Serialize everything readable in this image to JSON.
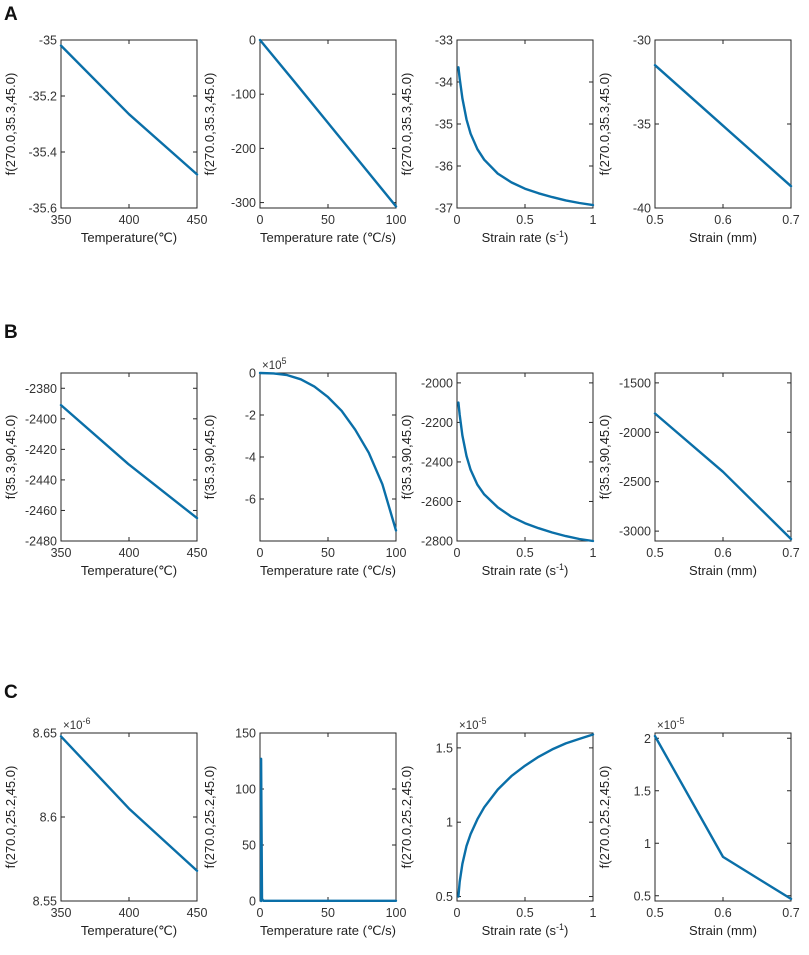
{
  "colors": {
    "line": "#0A6FA8"
  },
  "panel_labels": [
    "A",
    "B",
    "C"
  ],
  "chart_data": [
    {
      "panel": "A",
      "type": "line",
      "ylabel": "f(270.0,35.3,45.0)",
      "xlabel": "Temperature(℃)",
      "xlim": [
        350,
        450
      ],
      "ylim": [
        -35.6,
        -35.0
      ],
      "xticks": [
        350,
        400,
        450
      ],
      "yticks": [
        -35.6,
        -35.4,
        -35.2,
        -35
      ],
      "ytick_labels": [
        "-35.6",
        "-35.4",
        "-35.2",
        "-35"
      ],
      "xtick_labels": [
        "350",
        "400",
        "450"
      ],
      "y_exponent": null,
      "x": [
        350,
        400,
        450
      ],
      "y": [
        -35.02,
        -35.265,
        -35.48
      ]
    },
    {
      "panel": "A",
      "type": "line",
      "ylabel": "f(270.0,35.3,45.0)",
      "xlabel": "Temperature rate (℃/s)",
      "xlim": [
        0,
        100
      ],
      "ylim": [
        -310,
        0
      ],
      "xticks": [
        0,
        50,
        100
      ],
      "yticks": [
        -300,
        -200,
        -100,
        0
      ],
      "ytick_labels": [
        "-300",
        "-200",
        "-100",
        "0"
      ],
      "xtick_labels": [
        "0",
        "50",
        "100"
      ],
      "y_exponent": null,
      "x": [
        0,
        25,
        50,
        75,
        100
      ],
      "y": [
        0,
        -76,
        -153,
        -230,
        -307
      ]
    },
    {
      "panel": "A",
      "type": "line",
      "ylabel": "f(270.0,35.3,45.0)",
      "xlabel": "Strain rate (s",
      "xlabel_sup": "-1",
      "xlabel_suffix": ")",
      "xlim": [
        0,
        1
      ],
      "ylim": [
        -37,
        -33
      ],
      "xticks": [
        0,
        0.5,
        1
      ],
      "yticks": [
        -37,
        -36,
        -35,
        -34,
        -33
      ],
      "ytick_labels": [
        "-37",
        "-36",
        "-35",
        "-34",
        "-33"
      ],
      "xtick_labels": [
        "0",
        "0.5",
        "1"
      ],
      "y_exponent": null,
      "x": [
        0.01,
        0.02,
        0.04,
        0.07,
        0.1,
        0.15,
        0.2,
        0.3,
        0.4,
        0.5,
        0.6,
        0.7,
        0.8,
        0.9,
        1.0
      ],
      "y": [
        -33.65,
        -33.92,
        -34.39,
        -34.89,
        -35.23,
        -35.6,
        -35.85,
        -36.18,
        -36.39,
        -36.54,
        -36.65,
        -36.74,
        -36.82,
        -36.88,
        -36.93
      ]
    },
    {
      "panel": "A",
      "type": "line",
      "ylabel": "f(270.0,35.3,45.0)",
      "xlabel": "Strain (mm)",
      "xlim": [
        0.5,
        0.7
      ],
      "ylim": [
        -40,
        -30
      ],
      "xticks": [
        0.5,
        0.6,
        0.7
      ],
      "yticks": [
        -40,
        -35,
        -30
      ],
      "ytick_labels": [
        "-40",
        "-35",
        "-30"
      ],
      "xtick_labels": [
        "0.5",
        "0.6",
        "0.7"
      ],
      "y_exponent": null,
      "x": [
        0.5,
        0.6,
        0.7
      ],
      "y": [
        -31.5,
        -35.1,
        -38.7
      ]
    },
    {
      "panel": "B",
      "type": "line",
      "ylabel": "f(35.3,90,45.0)",
      "xlabel": "Temperature(℃)",
      "xlim": [
        350,
        450
      ],
      "ylim": [
        -2480,
        -2370
      ],
      "xticks": [
        350,
        400,
        450
      ],
      "yticks": [
        -2480,
        -2460,
        -2440,
        -2420,
        -2400,
        -2380
      ],
      "ytick_labels": [
        "-2480",
        "-2460",
        "-2440",
        "-2420",
        "-2400",
        "-2380"
      ],
      "xtick_labels": [
        "350",
        "400",
        "450"
      ],
      "y_exponent": null,
      "x": [
        350,
        400,
        450
      ],
      "y": [
        -2391,
        -2430,
        -2465
      ]
    },
    {
      "panel": "B",
      "type": "line",
      "ylabel": "f(35.3,90,45.0)",
      "xlabel": "Temperature rate (℃/s)",
      "xlim": [
        0,
        100
      ],
      "ylim": [
        -8,
        0
      ],
      "xticks": [
        0,
        50,
        100
      ],
      "yticks": [
        -6,
        -4,
        -2,
        0
      ],
      "ytick_labels": [
        "-6",
        "-4",
        "-2",
        "0"
      ],
      "xtick_labels": [
        "0",
        "50",
        "100"
      ],
      "y_exponent": "5",
      "x": [
        0,
        10,
        20,
        30,
        40,
        50,
        60,
        70,
        80,
        90,
        100
      ],
      "y": [
        0,
        -0.02,
        -0.1,
        -0.3,
        -0.65,
        -1.15,
        -1.8,
        -2.7,
        -3.8,
        -5.3,
        -7.5
      ]
    },
    {
      "panel": "B",
      "type": "line",
      "ylabel": "f(35.3,90,45.0)",
      "xlabel": "Strain rate (s",
      "xlabel_sup": "-1",
      "xlabel_suffix": ")",
      "xlim": [
        0,
        1
      ],
      "ylim": [
        -2800,
        -1950
      ],
      "xticks": [
        0,
        0.5,
        1
      ],
      "yticks": [
        -2800,
        -2600,
        -2400,
        -2200,
        -2000
      ],
      "ytick_labels": [
        "-2800",
        "-2600",
        "-2400",
        "-2200",
        "-2000"
      ],
      "xtick_labels": [
        "0",
        "0.5",
        "1"
      ],
      "y_exponent": null,
      "x": [
        0.01,
        0.02,
        0.04,
        0.07,
        0.1,
        0.15,
        0.2,
        0.3,
        0.4,
        0.5,
        0.6,
        0.7,
        0.8,
        0.9,
        1.0
      ],
      "y": [
        -2100,
        -2162,
        -2266,
        -2370,
        -2440,
        -2515,
        -2564,
        -2630,
        -2677,
        -2710,
        -2735,
        -2757,
        -2775,
        -2790,
        -2800
      ]
    },
    {
      "panel": "B",
      "type": "line",
      "ylabel": "f(35.3,90,45.0)",
      "xlabel": "Strain (mm)",
      "xlim": [
        0.5,
        0.7
      ],
      "ylim": [
        -3100,
        -1400
      ],
      "xticks": [
        0.5,
        0.6,
        0.7
      ],
      "yticks": [
        -3000,
        -2500,
        -2000,
        -1500
      ],
      "ytick_labels": [
        "-3000",
        "-2500",
        "-2000",
        "-1500"
      ],
      "xtick_labels": [
        "0.5",
        "0.6",
        "0.7"
      ],
      "y_exponent": null,
      "x": [
        0.5,
        0.6,
        0.7
      ],
      "y": [
        -1810,
        -2400,
        -3080
      ]
    },
    {
      "panel": "C",
      "type": "line",
      "ylabel": "f(270.0,25.2,45.0)",
      "xlabel": "Temperature(℃)",
      "xlim": [
        350,
        450
      ],
      "ylim": [
        8.55,
        8.65
      ],
      "xticks": [
        350,
        400,
        450
      ],
      "yticks": [
        8.55,
        8.6,
        8.65
      ],
      "ytick_labels": [
        "8.55",
        "8.6",
        "8.65"
      ],
      "xtick_labels": [
        "350",
        "400",
        "450"
      ],
      "y_exponent": "-6",
      "x": [
        350,
        400,
        450
      ],
      "y": [
        8.648,
        8.605,
        8.568
      ]
    },
    {
      "panel": "C",
      "type": "line",
      "ylabel": "f(270.0,25.2,45.0)",
      "xlabel": "Temperature rate (℃/s)",
      "xlim": [
        0,
        100
      ],
      "ylim": [
        0,
        150
      ],
      "xticks": [
        0,
        50,
        100
      ],
      "yticks": [
        0,
        50,
        100,
        150
      ],
      "ytick_labels": [
        "0",
        "50",
        "100",
        "150"
      ],
      "xtick_labels": [
        "0",
        "50",
        "100"
      ],
      "y_exponent": null,
      "x": [
        0.8,
        0.8,
        1.5,
        2.5,
        100
      ],
      "y": [
        0,
        127,
        2,
        0.2,
        0.2
      ]
    },
    {
      "panel": "C",
      "type": "line",
      "ylabel": "f(270.0,25.2,45.0)",
      "xlabel": "Strain rate (s",
      "xlabel_sup": "-1",
      "xlabel_suffix": ")",
      "xlim": [
        0,
        1
      ],
      "ylim": [
        0.47,
        1.6
      ],
      "xticks": [
        0,
        0.5,
        1
      ],
      "yticks": [
        0.5,
        1,
        1.5
      ],
      "ytick_labels": [
        "0.5",
        "1",
        "1.5"
      ],
      "xtick_labels": [
        "0",
        "0.5",
        "1"
      ],
      "y_exponent": "-5",
      "x": [
        0.01,
        0.02,
        0.04,
        0.07,
        0.1,
        0.15,
        0.2,
        0.3,
        0.4,
        0.5,
        0.6,
        0.7,
        0.8,
        0.9,
        1.0
      ],
      "y": [
        0.5,
        0.6,
        0.72,
        0.84,
        0.92,
        1.02,
        1.1,
        1.22,
        1.31,
        1.38,
        1.44,
        1.49,
        1.53,
        1.56,
        1.59
      ]
    },
    {
      "panel": "C",
      "type": "line",
      "ylabel": "f(270.0,25.2,45.0)",
      "xlabel": "Strain (mm)",
      "xlim": [
        0.5,
        0.7
      ],
      "ylim": [
        0.45,
        2.05
      ],
      "xticks": [
        0.5,
        0.6,
        0.7
      ],
      "yticks": [
        0.5,
        1,
        1.5,
        2
      ],
      "ytick_labels": [
        "0.5",
        "1",
        "1.5",
        "2"
      ],
      "xtick_labels": [
        "0.5",
        "0.6",
        "0.7"
      ],
      "y_exponent": "-5",
      "x": [
        0.5,
        0.6,
        0.7
      ],
      "y": [
        2.02,
        0.87,
        0.47
      ]
    }
  ]
}
